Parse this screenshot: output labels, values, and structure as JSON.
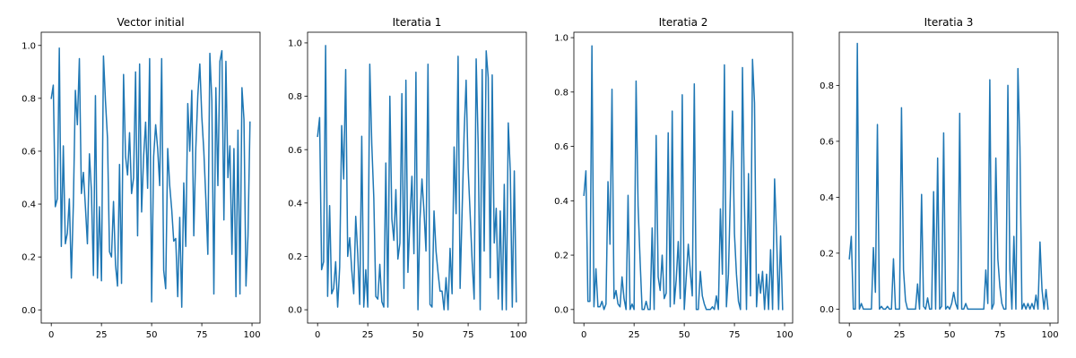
{
  "chart_data": [
    {
      "type": "line",
      "title": "Vector initial",
      "xlabel": "",
      "ylabel": "",
      "xlim": [
        -5,
        104
      ],
      "ylim": [
        -0.05,
        1.05
      ],
      "x_ticks": [
        0,
        25,
        50,
        75,
        100
      ],
      "y_ticks": [
        0.0,
        0.2,
        0.4,
        0.6,
        0.8,
        1.0
      ],
      "grid": false,
      "color": "#1f77b4",
      "x": [
        0,
        1,
        2,
        3,
        4,
        5,
        6,
        7,
        8,
        9,
        10,
        11,
        12,
        13,
        14,
        15,
        16,
        17,
        18,
        19,
        20,
        21,
        22,
        23,
        24,
        25,
        26,
        27,
        28,
        29,
        30,
        31,
        32,
        33,
        34,
        35,
        36,
        37,
        38,
        39,
        40,
        41,
        42,
        43,
        44,
        45,
        46,
        47,
        48,
        49,
        50,
        51,
        52,
        53,
        54,
        55,
        56,
        57,
        58,
        59,
        60,
        61,
        62,
        63,
        64,
        65,
        66,
        67,
        68,
        69,
        70,
        71,
        72,
        73,
        74,
        75,
        76,
        77,
        78,
        79,
        80,
        81,
        82,
        83,
        84,
        85,
        86,
        87,
        88,
        89,
        90,
        91,
        92,
        93,
        94,
        95,
        96,
        97,
        98,
        99
      ],
      "values": [
        0.8,
        0.85,
        0.39,
        0.42,
        0.99,
        0.24,
        0.62,
        0.25,
        0.29,
        0.42,
        0.12,
        0.4,
        0.83,
        0.7,
        0.95,
        0.44,
        0.52,
        0.39,
        0.25,
        0.59,
        0.45,
        0.13,
        0.81,
        0.12,
        0.39,
        0.11,
        0.96,
        0.79,
        0.65,
        0.22,
        0.2,
        0.41,
        0.17,
        0.09,
        0.55,
        0.1,
        0.89,
        0.58,
        0.51,
        0.67,
        0.44,
        0.5,
        0.9,
        0.28,
        0.93,
        0.37,
        0.58,
        0.71,
        0.46,
        0.95,
        0.03,
        0.58,
        0.7,
        0.61,
        0.47,
        0.95,
        0.15,
        0.08,
        0.61,
        0.47,
        0.38,
        0.26,
        0.27,
        0.05,
        0.35,
        0.01,
        0.48,
        0.24,
        0.78,
        0.6,
        0.83,
        0.28,
        0.61,
        0.81,
        0.93,
        0.73,
        0.6,
        0.42,
        0.21,
        0.97,
        0.79,
        0.06,
        0.84,
        0.47,
        0.94,
        0.98,
        0.34,
        0.94,
        0.5,
        0.62,
        0.21,
        0.61,
        0.05,
        0.68,
        0.06,
        0.84,
        0.72,
        0.09,
        0.28,
        0.71
      ]
    },
    {
      "type": "line",
      "title": "Iteratia 1",
      "xlabel": "",
      "ylabel": "",
      "xlim": [
        -5,
        104
      ],
      "ylim": [
        -0.05,
        1.04
      ],
      "x_ticks": [
        0,
        25,
        50,
        75,
        100
      ],
      "y_ticks": [
        0.0,
        0.2,
        0.4,
        0.6,
        0.8,
        1.0
      ],
      "grid": false,
      "color": "#1f77b4",
      "x": [
        0,
        1,
        2,
        3,
        4,
        5,
        6,
        7,
        8,
        9,
        10,
        11,
        12,
        13,
        14,
        15,
        16,
        17,
        18,
        19,
        20,
        21,
        22,
        23,
        24,
        25,
        26,
        27,
        28,
        29,
        30,
        31,
        32,
        33,
        34,
        35,
        36,
        37,
        38,
        39,
        40,
        41,
        42,
        43,
        44,
        45,
        46,
        47,
        48,
        49,
        50,
        51,
        52,
        53,
        54,
        55,
        56,
        57,
        58,
        59,
        60,
        61,
        62,
        63,
        64,
        65,
        66,
        67,
        68,
        69,
        70,
        71,
        72,
        73,
        74,
        75,
        76,
        77,
        78,
        79,
        80,
        81,
        82,
        83,
        84,
        85,
        86,
        87,
        88,
        89,
        90,
        91,
        92,
        93,
        94,
        95,
        96,
        97,
        98,
        99
      ],
      "values": [
        0.65,
        0.72,
        0.15,
        0.18,
        0.99,
        0.05,
        0.39,
        0.06,
        0.08,
        0.18,
        0.01,
        0.16,
        0.69,
        0.49,
        0.9,
        0.2,
        0.27,
        0.15,
        0.06,
        0.35,
        0.21,
        0.02,
        0.65,
        0.01,
        0.15,
        0.01,
        0.92,
        0.62,
        0.42,
        0.05,
        0.04,
        0.17,
        0.03,
        0.01,
        0.55,
        0.01,
        0.8,
        0.34,
        0.26,
        0.45,
        0.19,
        0.25,
        0.81,
        0.08,
        0.86,
        0.14,
        0.34,
        0.5,
        0.21,
        0.89,
        0.0,
        0.34,
        0.49,
        0.37,
        0.22,
        0.92,
        0.02,
        0.01,
        0.37,
        0.22,
        0.14,
        0.07,
        0.07,
        0.0,
        0.12,
        0.0,
        0.23,
        0.06,
        0.61,
        0.36,
        0.95,
        0.08,
        0.37,
        0.66,
        0.86,
        0.53,
        0.36,
        0.18,
        0.04,
        0.94,
        0.62,
        0.0,
        0.9,
        0.22,
        0.97,
        0.87,
        0.12,
        0.88,
        0.25,
        0.38,
        0.04,
        0.37,
        0.0,
        0.47,
        0.0,
        0.7,
        0.52,
        0.01,
        0.52,
        0.03
      ]
    },
    {
      "type": "line",
      "title": "Iteratia 2",
      "xlabel": "",
      "ylabel": "",
      "xlim": [
        -5,
        104
      ],
      "ylim": [
        -0.05,
        1.02
      ],
      "x_ticks": [
        0,
        25,
        50,
        75,
        100
      ],
      "y_ticks": [
        0.0,
        0.2,
        0.4,
        0.6,
        0.8,
        1.0
      ],
      "grid": false,
      "color": "#1f77b4",
      "x": [
        0,
        1,
        2,
        3,
        4,
        5,
        6,
        7,
        8,
        9,
        10,
        11,
        12,
        13,
        14,
        15,
        16,
        17,
        18,
        19,
        20,
        21,
        22,
        23,
        24,
        25,
        26,
        27,
        28,
        29,
        30,
        31,
        32,
        33,
        34,
        35,
        36,
        37,
        38,
        39,
        40,
        41,
        42,
        43,
        44,
        45,
        46,
        47,
        48,
        49,
        50,
        51,
        52,
        53,
        54,
        55,
        56,
        57,
        58,
        59,
        60,
        61,
        62,
        63,
        64,
        65,
        66,
        67,
        68,
        69,
        70,
        71,
        72,
        73,
        74,
        75,
        76,
        77,
        78,
        79,
        80,
        81,
        82,
        83,
        84,
        85,
        86,
        87,
        88,
        89,
        90,
        91,
        92,
        93,
        94,
        95,
        96,
        97,
        98,
        99
      ],
      "values": [
        0.42,
        0.51,
        0.03,
        0.03,
        0.97,
        0.01,
        0.15,
        0.01,
        0.01,
        0.03,
        0.0,
        0.02,
        0.47,
        0.24,
        0.81,
        0.04,
        0.07,
        0.02,
        0.01,
        0.12,
        0.04,
        0.0,
        0.42,
        0.0,
        0.02,
        0.0,
        0.84,
        0.38,
        0.18,
        0.0,
        0.0,
        0.03,
        0.0,
        0.0,
        0.3,
        0.0,
        0.64,
        0.12,
        0.07,
        0.2,
        0.04,
        0.06,
        0.65,
        0.01,
        0.73,
        0.02,
        0.11,
        0.25,
        0.04,
        0.79,
        0.0,
        0.12,
        0.24,
        0.14,
        0.05,
        0.83,
        0.0,
        0.0,
        0.14,
        0.05,
        0.02,
        0.0,
        0.0,
        0.0,
        0.01,
        0.0,
        0.05,
        0.0,
        0.37,
        0.13,
        0.9,
        0.01,
        0.13,
        0.43,
        0.73,
        0.28,
        0.13,
        0.03,
        0.0,
        0.89,
        0.38,
        0.0,
        0.5,
        0.05,
        0.92,
        0.76,
        0.01,
        0.13,
        0.06,
        0.14,
        0.0,
        0.13,
        0.0,
        0.22,
        0.0,
        0.48,
        0.27,
        0.0,
        0.27,
        0.0
      ]
    },
    {
      "type": "line",
      "title": "Iteratia 3",
      "xlabel": "",
      "ylabel": "",
      "xlim": [
        -5,
        104
      ],
      "ylim": [
        -0.05,
        0.99
      ],
      "x_ticks": [
        0,
        25,
        50,
        75,
        100
      ],
      "y_ticks": [
        0.0,
        0.2,
        0.4,
        0.6,
        0.8
      ],
      "grid": false,
      "color": "#1f77b4",
      "x": [
        0,
        1,
        2,
        3,
        4,
        5,
        6,
        7,
        8,
        9,
        10,
        11,
        12,
        13,
        14,
        15,
        16,
        17,
        18,
        19,
        20,
        21,
        22,
        23,
        24,
        25,
        26,
        27,
        28,
        29,
        30,
        31,
        32,
        33,
        34,
        35,
        36,
        37,
        38,
        39,
        40,
        41,
        42,
        43,
        44,
        45,
        46,
        47,
        48,
        49,
        50,
        51,
        52,
        53,
        54,
        55,
        56,
        57,
        58,
        59,
        60,
        61,
        62,
        63,
        64,
        65,
        66,
        67,
        68,
        69,
        70,
        71,
        72,
        73,
        74,
        75,
        76,
        77,
        78,
        79,
        80,
        81,
        82,
        83,
        84,
        85,
        86,
        87,
        88,
        89,
        90,
        91,
        92,
        93,
        94,
        95,
        96,
        97,
        98,
        99
      ],
      "values": [
        0.18,
        0.26,
        0.0,
        0.0,
        0.95,
        0.0,
        0.02,
        0.0,
        0.0,
        0.0,
        0.0,
        0.0,
        0.22,
        0.06,
        0.66,
        0.0,
        0.01,
        0.0,
        0.0,
        0.01,
        0.0,
        0.0,
        0.18,
        0.0,
        0.0,
        0.0,
        0.72,
        0.14,
        0.03,
        0.0,
        0.0,
        0.0,
        0.0,
        0.0,
        0.09,
        0.0,
        0.41,
        0.01,
        0.0,
        0.04,
        0.0,
        0.0,
        0.42,
        0.0,
        0.54,
        0.0,
        0.01,
        0.63,
        0.0,
        0.01,
        0.0,
        0.02,
        0.06,
        0.02,
        0.0,
        0.7,
        0.0,
        0.0,
        0.02,
        0.0,
        0.0,
        0.0,
        0.0,
        0.0,
        0.0,
        0.0,
        0.0,
        0.0,
        0.14,
        0.02,
        0.82,
        0.0,
        0.02,
        0.54,
        0.18,
        0.08,
        0.02,
        0.0,
        0.0,
        0.8,
        0.14,
        0.0,
        0.26,
        0.0,
        0.86,
        0.58,
        0.0,
        0.02,
        0.0,
        0.02,
        0.0,
        0.02,
        0.0,
        0.05,
        0.0,
        0.24,
        0.07,
        0.0,
        0.07,
        0.0
      ]
    }
  ]
}
